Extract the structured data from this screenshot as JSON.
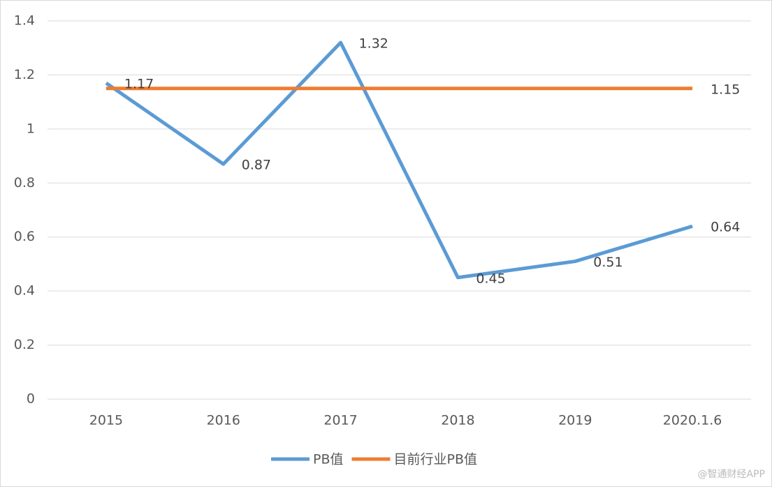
{
  "chart_data": {
    "type": "line",
    "categories": [
      "2015",
      "2016",
      "2017",
      "2018",
      "2019",
      "2020.1.6"
    ],
    "series": [
      {
        "name": "PB值",
        "color": "#5b9bd5",
        "values": [
          1.17,
          0.87,
          1.32,
          0.45,
          0.51,
          0.64
        ],
        "show_labels": "all"
      },
      {
        "name": "目前行业PB值",
        "color": "#ed7d31",
        "values": [
          1.15,
          1.15,
          1.15,
          1.15,
          1.15,
          1.15
        ],
        "show_labels": "last"
      }
    ],
    "ylim": [
      0,
      1.4
    ],
    "yticks": [
      0,
      0.2,
      0.4,
      0.6,
      0.8,
      1,
      1.2,
      1.4
    ],
    "grid": true,
    "legend": "bottom",
    "watermark": "@智通财经APP"
  }
}
